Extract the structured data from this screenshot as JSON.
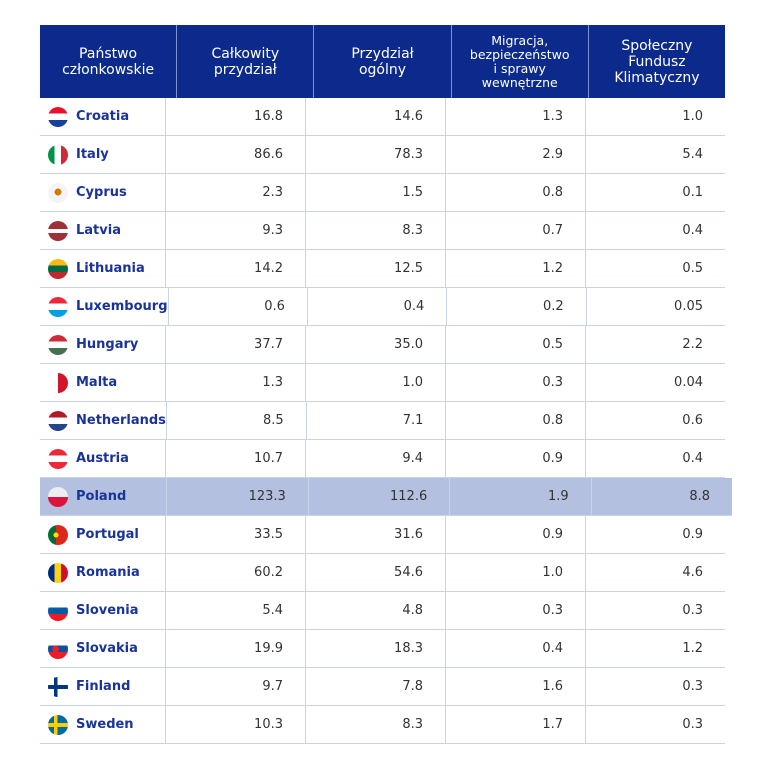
{
  "headers": [
    "Państwo\nczłonkowskie",
    "Całkowity\nprzydział",
    "Przydział\nogólny",
    "Migracja,\nbezpieczeństwo\ni sprawy\nwewnętrzne",
    "Społeczny\nFundusz\nKlimatyczny"
  ],
  "highlight_color": "#b3c0e0",
  "header_color": "#0c2a8c",
  "rows": [
    {
      "country": "Croatia",
      "flag": "croatia-flag-icon",
      "v": [
        "16.8",
        "14.6",
        "1.3",
        "1.0"
      ]
    },
    {
      "country": "Italy",
      "flag": "italy-flag-icon",
      "v": [
        "86.6",
        "78.3",
        "2.9",
        "5.4"
      ]
    },
    {
      "country": "Cyprus",
      "flag": "cyprus-flag-icon",
      "v": [
        "2.3",
        "1.5",
        "0.8",
        "0.1"
      ]
    },
    {
      "country": "Latvia",
      "flag": "latvia-flag-icon",
      "v": [
        "9.3",
        "8.3",
        "0.7",
        "0.4"
      ]
    },
    {
      "country": "Lithuania",
      "flag": "lithuania-flag-icon",
      "v": [
        "14.2",
        "12.5",
        "1.2",
        "0.5"
      ]
    },
    {
      "country": "Luxembourg",
      "flag": "luxembourg-flag-icon",
      "v": [
        "0.6",
        "0.4",
        "0.2",
        "0.05"
      ]
    },
    {
      "country": "Hungary",
      "flag": "hungary-flag-icon",
      "v": [
        "37.7",
        "35.0",
        "0.5",
        "2.2"
      ]
    },
    {
      "country": "Malta",
      "flag": "malta-flag-icon",
      "v": [
        "1.3",
        "1.0",
        "0.3",
        "0.04"
      ]
    },
    {
      "country": "Netherlands",
      "flag": "netherlands-flag-icon",
      "v": [
        "8.5",
        "7.1",
        "0.8",
        "0.6"
      ]
    },
    {
      "country": "Austria",
      "flag": "austria-flag-icon",
      "v": [
        "10.7",
        "9.4",
        "0.9",
        "0.4"
      ]
    },
    {
      "country": "Poland",
      "flag": "poland-flag-icon",
      "highlighted": true,
      "v": [
        "123.3",
        "112.6",
        "1.9",
        "8.8"
      ]
    },
    {
      "country": "Portugal",
      "flag": "portugal-flag-icon",
      "v": [
        "33.5",
        "31.6",
        "0.9",
        "0.9"
      ]
    },
    {
      "country": "Romania",
      "flag": "romania-flag-icon",
      "v": [
        "60.2",
        "54.6",
        "1.0",
        "4.6"
      ]
    },
    {
      "country": "Slovenia",
      "flag": "slovenia-flag-icon",
      "v": [
        "5.4",
        "4.8",
        "0.3",
        "0.3"
      ]
    },
    {
      "country": "Slovakia",
      "flag": "slovakia-flag-icon",
      "v": [
        "19.9",
        "18.3",
        "0.4",
        "1.2"
      ]
    },
    {
      "country": "Finland",
      "flag": "finland-flag-icon",
      "v": [
        "9.7",
        "7.8",
        "1.6",
        "0.3"
      ]
    },
    {
      "country": "Sweden",
      "flag": "sweden-flag-icon",
      "v": [
        "10.3",
        "8.3",
        "1.7",
        "0.3"
      ]
    }
  ]
}
